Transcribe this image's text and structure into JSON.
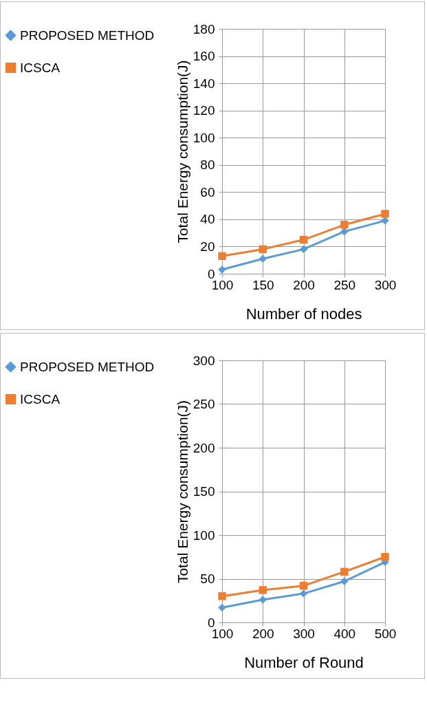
{
  "chart_data": [
    {
      "type": "line",
      "xlabel": "Number of nodes",
      "ylabel": "Total Energy consumption(J)",
      "categories": [
        "100",
        "150",
        "200",
        "250",
        "300"
      ],
      "ylim": [
        0,
        180
      ],
      "yticks": [
        0,
        20,
        40,
        60,
        80,
        100,
        120,
        140,
        160,
        180
      ],
      "grid": true,
      "legend": "left",
      "series": [
        {
          "name": "PROPOSED METHOD",
          "color": "#5b9bd5",
          "marker": "diamond",
          "values": [
            3,
            11,
            18,
            31,
            39
          ]
        },
        {
          "name": "ICSCA",
          "color": "#ed7d31",
          "marker": "square",
          "values": [
            13,
            18,
            25,
            36,
            44
          ]
        }
      ]
    },
    {
      "type": "line",
      "xlabel": "Number of Round",
      "ylabel": "Total Energy consumption(J)",
      "categories": [
        "100",
        "200",
        "300",
        "400",
        "500"
      ],
      "ylim": [
        0,
        300
      ],
      "yticks": [
        0,
        50,
        100,
        150,
        200,
        250,
        300
      ],
      "grid": true,
      "legend": "left",
      "series": [
        {
          "name": "PROPOSED METHOD",
          "color": "#5b9bd5",
          "marker": "diamond",
          "values": [
            17,
            26,
            33,
            47,
            69
          ]
        },
        {
          "name": "ICSCA",
          "color": "#ed7d31",
          "marker": "square",
          "values": [
            30,
            37,
            42,
            58,
            75
          ]
        }
      ]
    }
  ]
}
